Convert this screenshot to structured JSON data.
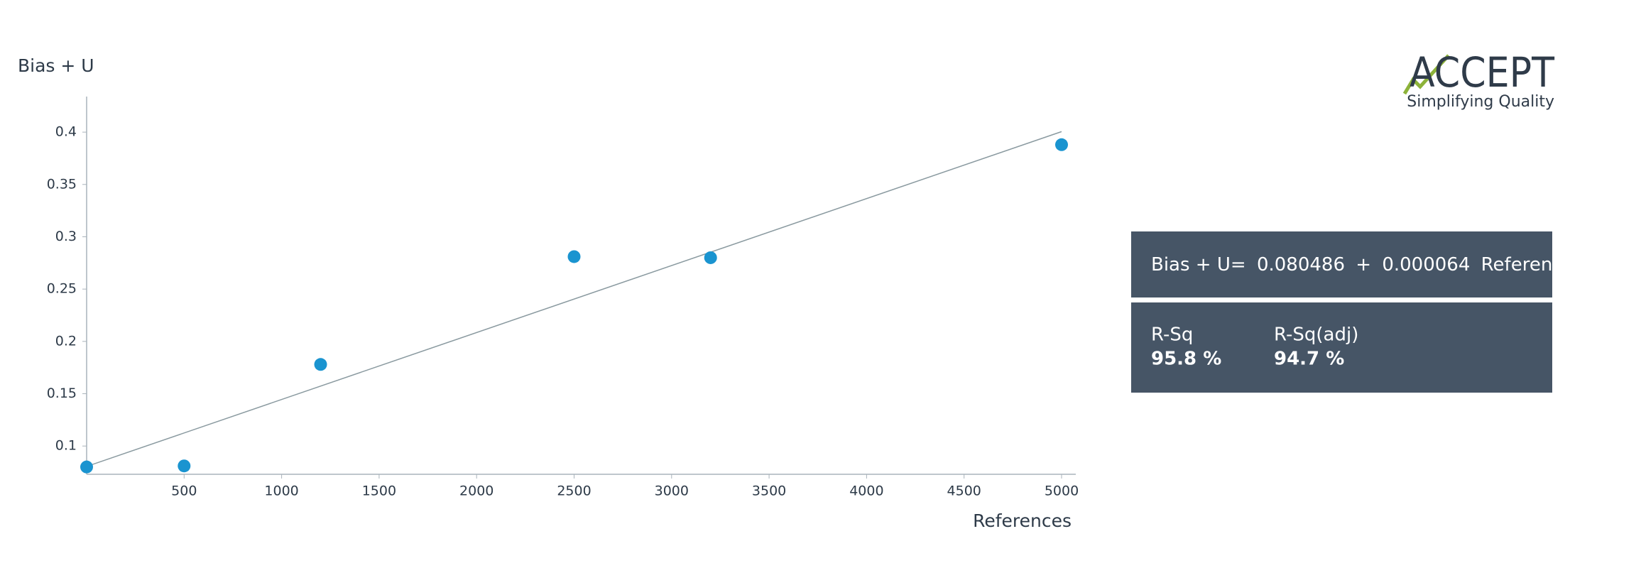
{
  "chart_data": {
    "type": "scatter",
    "y_label": "Bias + U",
    "x_label": "References",
    "x": [
      0,
      500,
      1200,
      2500,
      3200,
      5000
    ],
    "series": [
      {
        "color": "#1a94d0",
        "values": [
          0.08,
          0.081,
          0.178,
          0.281,
          0.28,
          0.388
        ]
      }
    ],
    "xlim": [
      0,
      5000
    ],
    "xticks": [
      500,
      1000,
      1500,
      2000,
      2500,
      3000,
      3500,
      4000,
      4500,
      5000
    ],
    "ylim": [
      0.073,
      0.434
    ],
    "yticks": [
      0.1,
      0.15,
      0.2,
      0.25,
      0.3,
      0.35,
      0.4
    ],
    "fit_color": "#8a9aa0",
    "equation": {
      "lhs": "Bias + U=",
      "intercept": 0.080486,
      "op": "+",
      "slope": 6.4e-05,
      "variable": "References"
    },
    "stats": [
      {
        "label": "R-Sq",
        "value": "95.8 %"
      },
      {
        "label": "R-Sq(adj)",
        "value": "94.7 %"
      }
    ]
  },
  "logo": {
    "name": "ACCEPT",
    "tagline": "Simplifying Quality"
  }
}
